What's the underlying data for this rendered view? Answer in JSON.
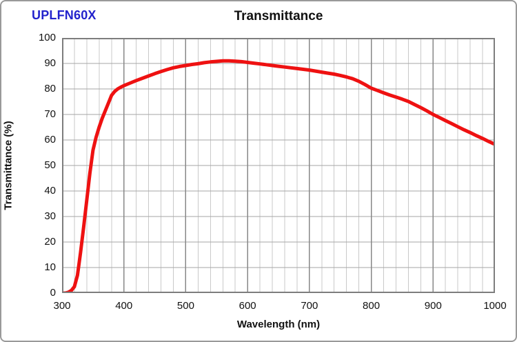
{
  "header": {
    "model_label": "UPLFN60X"
  },
  "chart_data": {
    "type": "line",
    "title": "Transmittance",
    "xlabel": "Wavelength (nm)",
    "ylabel": "Transmittance (%)",
    "xlim": [
      300,
      1000
    ],
    "ylim": [
      0,
      100
    ],
    "x_major_tick_step": 100,
    "x_minor_tick_step": 20,
    "y_tick_step": 10,
    "x_tick_labels": [
      "300",
      "400",
      "500",
      "600",
      "700",
      "800",
      "900",
      "1000"
    ],
    "y_tick_labels": [
      "0",
      "10",
      "20",
      "30",
      "40",
      "50",
      "60",
      "70",
      "80",
      "90",
      "100"
    ],
    "grid": true,
    "legend": "none",
    "series": [
      {
        "name": "UPLFN60X transmittance",
        "color": "#ee1111",
        "x": [
          300,
          305,
          310,
          315,
          320,
          325,
          330,
          335,
          340,
          345,
          350,
          355,
          360,
          365,
          370,
          375,
          380,
          385,
          390,
          395,
          400,
          410,
          420,
          430,
          440,
          450,
          460,
          470,
          480,
          490,
          500,
          510,
          520,
          530,
          540,
          550,
          560,
          570,
          580,
          590,
          600,
          610,
          620,
          630,
          640,
          650,
          660,
          670,
          680,
          690,
          700,
          710,
          720,
          730,
          740,
          750,
          760,
          770,
          780,
          790,
          800,
          810,
          820,
          830,
          840,
          850,
          860,
          870,
          880,
          890,
          900,
          910,
          920,
          930,
          940,
          950,
          960,
          970,
          980,
          990,
          1000
        ],
        "y": [
          0,
          0,
          0.3,
          1,
          2.5,
          7,
          16,
          26,
          36.5,
          47,
          56,
          61,
          65,
          68.5,
          71.5,
          74.5,
          77.5,
          79,
          80,
          80.7,
          81.3,
          82.3,
          83.3,
          84.2,
          85.1,
          86,
          86.8,
          87.6,
          88.3,
          88.8,
          89.2,
          89.6,
          89.9,
          90.3,
          90.6,
          90.8,
          91,
          91,
          90.9,
          90.7,
          90.4,
          90.1,
          89.8,
          89.5,
          89.2,
          88.9,
          88.6,
          88.3,
          88,
          87.7,
          87.4,
          87,
          86.6,
          86.2,
          85.8,
          85.3,
          84.7,
          84,
          83,
          81.7,
          80.3,
          79.4,
          78.5,
          77.6,
          76.8,
          76,
          75.1,
          73.9,
          72.7,
          71.4,
          70,
          68.8,
          67.6,
          66.4,
          65.2,
          64,
          62.9,
          61.7,
          60.6,
          59.4,
          58.3
        ]
      }
    ],
    "colors": {
      "curve": "#ee1111",
      "grid_minor": "#c9c9c9",
      "grid_horizontal": "#a6a6a6",
      "grid_major": "#878787",
      "plot_border": "#7d7d7d",
      "model_label": "#2222cc",
      "text": "#111111",
      "frame_border": "#999999"
    }
  }
}
